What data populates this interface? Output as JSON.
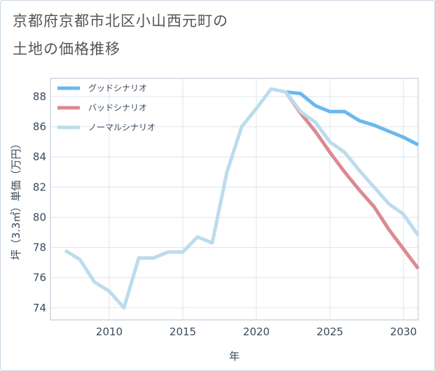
{
  "title": {
    "line1": "京都府京都市北区小山西元町の",
    "line2": "土地の価格推移"
  },
  "chart_data": {
    "type": "line",
    "xlabel": "年",
    "ylabel": "坪（3.3㎡）単価（万円）",
    "xlim": [
      2006,
      2031
    ],
    "ylim": [
      73.2,
      89.2
    ],
    "x_ticks": [
      2010,
      2015,
      2020,
      2025,
      2030
    ],
    "y_ticks": [
      74,
      76,
      78,
      80,
      82,
      84,
      86,
      88
    ],
    "grid": true,
    "legend_position": "top-left",
    "series": [
      {
        "name": "グッドシナリオ",
        "color": "#6ab8ee",
        "x": [
          2022,
          2023,
          2024,
          2025,
          2026,
          2027,
          2028,
          2029,
          2030,
          2031
        ],
        "y": [
          88.3,
          88.2,
          87.4,
          87.0,
          87.0,
          86.4,
          86.1,
          85.7,
          85.3,
          84.8
        ]
      },
      {
        "name": "バッドシナリオ",
        "color": "#db8a92",
        "x": [
          2022,
          2023,
          2024,
          2025,
          2026,
          2027,
          2028,
          2029,
          2030,
          2031
        ],
        "y": [
          88.3,
          86.9,
          85.7,
          84.3,
          83.0,
          81.8,
          80.7,
          79.2,
          77.9,
          76.6
        ]
      },
      {
        "name": "ノーマルシナリオ",
        "color": "#bcdcec",
        "x": [
          2007,
          2008,
          2009,
          2010,
          2011,
          2012,
          2013,
          2014,
          2015,
          2016,
          2017,
          2018,
          2019,
          2020,
          2021,
          2022,
          2023,
          2024,
          2025,
          2026,
          2027,
          2028,
          2029,
          2030,
          2031
        ],
        "y": [
          77.8,
          77.2,
          75.7,
          75.1,
          74.0,
          77.3,
          77.3,
          77.7,
          77.7,
          78.7,
          78.3,
          83.0,
          86.0,
          87.2,
          88.5,
          88.3,
          87.0,
          86.3,
          85.0,
          84.3,
          83.1,
          82.0,
          80.9,
          80.2,
          78.8
        ]
      }
    ]
  }
}
